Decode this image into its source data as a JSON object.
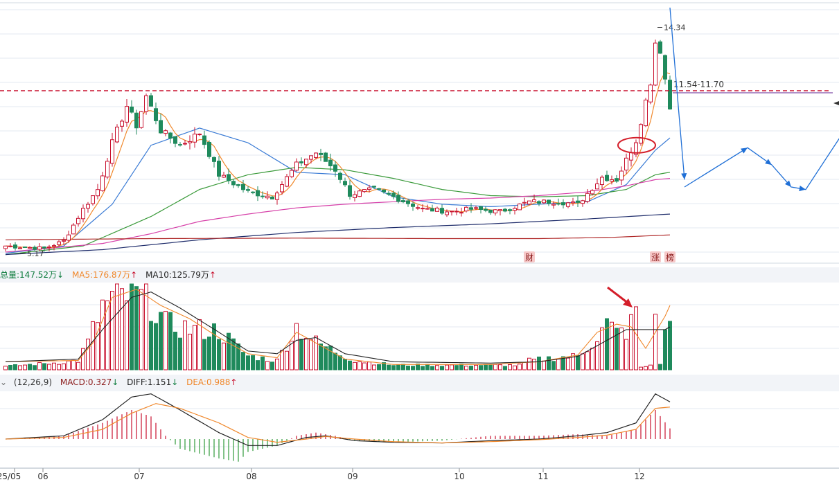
{
  "price_panel": {
    "high_label": "14.34",
    "low_label": "5.17",
    "resistance_label": "11.54-11.70",
    "markers": [
      "财",
      "涨",
      "榜"
    ]
  },
  "volume_panel": {
    "total_label": "总量:147.52万",
    "ma5_label": "MA5:176.87万",
    "ma10_label": "MA10:125.79万"
  },
  "macd_panel": {
    "params_label": "(12,26,9)",
    "macd_label": "MACD:0.327",
    "diff_label": "DIFF:1.151",
    "dea_label": "DEA:0.988"
  },
  "x_axis": {
    "labels": [
      "25/05",
      "06",
      "07",
      "08",
      "09",
      "10",
      "11",
      "12"
    ]
  },
  "colors": {
    "up": "#c8102e",
    "down": "#1f8a5c",
    "ma5": "#f0882c",
    "ma10": "#3a7bd5",
    "ma20": "#3a9a3a",
    "ma60": "#d63fa8",
    "ma120": "#1f2d6b",
    "ma250": "#b02a2a",
    "projection": "#1f6fd6"
  },
  "chart_data": {
    "type": "candlestick",
    "price_ylim": [
      4.6,
      15.2
    ],
    "resistance_value": 11.62,
    "close_path": [
      [
        0,
        5.3
      ],
      [
        8,
        5.2
      ],
      [
        12,
        5.5
      ],
      [
        16,
        6.8
      ],
      [
        19,
        7.6
      ],
      [
        22,
        9.5
      ],
      [
        25,
        11.0
      ],
      [
        27,
        10.2
      ],
      [
        29,
        11.4
      ],
      [
        32,
        10.0
      ],
      [
        36,
        9.4
      ],
      [
        40,
        9.9
      ],
      [
        44,
        8.2
      ],
      [
        50,
        7.5
      ],
      [
        55,
        7.3
      ],
      [
        60,
        8.6
      ],
      [
        64,
        9.1
      ],
      [
        68,
        8.4
      ],
      [
        71,
        7.4
      ],
      [
        76,
        7.6
      ],
      [
        80,
        7.3
      ],
      [
        86,
        6.8
      ],
      [
        92,
        6.7
      ],
      [
        96,
        6.8
      ],
      [
        102,
        6.7
      ],
      [
        108,
        7.1
      ],
      [
        114,
        7.1
      ],
      [
        118,
        7.0
      ],
      [
        123,
        8.1
      ],
      [
        126,
        8.0
      ],
      [
        128,
        8.8
      ],
      [
        130,
        9.6
      ],
      [
        133,
        12.0
      ],
      [
        134,
        13.6
      ],
      [
        135,
        13.3
      ],
      [
        136,
        12.1
      ],
      [
        137,
        10.9
      ]
    ],
    "events": [
      {
        "index": 108,
        "label": "财"
      },
      {
        "index": 134,
        "label": "涨"
      },
      {
        "index": 137,
        "label": "榜"
      }
    ],
    "ma_lines": [
      {
        "key": "ma10",
        "points": [
          [
            0,
            5.0
          ],
          [
            12,
            5.3
          ],
          [
            22,
            7.0
          ],
          [
            30,
            9.4
          ],
          [
            40,
            10.1
          ],
          [
            50,
            9.5
          ],
          [
            60,
            8.3
          ],
          [
            70,
            8.2
          ],
          [
            80,
            7.3
          ],
          [
            90,
            7.0
          ],
          [
            100,
            6.9
          ],
          [
            110,
            7.0
          ],
          [
            120,
            7.1
          ],
          [
            128,
            7.8
          ],
          [
            134,
            9.2
          ],
          [
            137,
            9.7
          ]
        ]
      },
      {
        "key": "ma20",
        "points": [
          [
            0,
            4.95
          ],
          [
            16,
            5.3
          ],
          [
            30,
            6.5
          ],
          [
            40,
            7.6
          ],
          [
            50,
            8.2
          ],
          [
            60,
            8.5
          ],
          [
            70,
            8.4
          ],
          [
            80,
            8.05
          ],
          [
            90,
            7.6
          ],
          [
            100,
            7.35
          ],
          [
            110,
            7.3
          ],
          [
            120,
            7.35
          ],
          [
            128,
            7.6
          ],
          [
            134,
            8.2
          ],
          [
            137,
            8.3
          ]
        ]
      },
      {
        "key": "ma60",
        "points": [
          [
            0,
            5.05
          ],
          [
            20,
            5.4
          ],
          [
            30,
            5.8
          ],
          [
            40,
            6.3
          ],
          [
            50,
            6.6
          ],
          [
            60,
            6.85
          ],
          [
            70,
            7.0
          ],
          [
            80,
            7.1
          ],
          [
            90,
            7.2
          ],
          [
            100,
            7.25
          ],
          [
            110,
            7.35
          ],
          [
            120,
            7.5
          ],
          [
            128,
            7.75
          ],
          [
            134,
            8.0
          ],
          [
            137,
            8.05
          ]
        ]
      },
      {
        "key": "ma120",
        "points": [
          [
            0,
            4.95
          ],
          [
            20,
            5.15
          ],
          [
            40,
            5.55
          ],
          [
            60,
            5.85
          ],
          [
            80,
            6.05
          ],
          [
            100,
            6.2
          ],
          [
            120,
            6.4
          ],
          [
            137,
            6.6
          ]
        ]
      },
      {
        "key": "ma250",
        "points": [
          [
            0,
            5.55
          ],
          [
            30,
            5.6
          ],
          [
            60,
            5.62
          ],
          [
            90,
            5.6
          ],
          [
            110,
            5.6
          ],
          [
            125,
            5.65
          ],
          [
            137,
            5.75
          ]
        ]
      }
    ],
    "projection": [
      [
        140,
        7.7
      ],
      [
        153,
        9.3
      ],
      [
        158,
        8.6
      ],
      [
        162,
        7.7
      ],
      [
        165,
        7.6
      ],
      [
        174,
        10.3
      ]
    ],
    "projection_aux": [
      [
        137,
        15.0
      ],
      [
        140,
        8.0
      ]
    ],
    "volume": {
      "ylim": [
        0,
        320
      ],
      "signal_volume_index": 130,
      "envelope": [
        [
          0,
          15
        ],
        [
          10,
          30
        ],
        [
          15,
          40
        ],
        [
          17,
          120
        ],
        [
          20,
          280
        ],
        [
          22,
          300
        ],
        [
          26,
          330
        ],
        [
          30,
          300
        ],
        [
          33,
          200
        ],
        [
          38,
          180
        ],
        [
          44,
          170
        ],
        [
          50,
          60
        ],
        [
          56,
          40
        ],
        [
          60,
          190
        ],
        [
          64,
          120
        ],
        [
          68,
          80
        ],
        [
          72,
          40
        ],
        [
          80,
          20
        ],
        [
          100,
          20
        ],
        [
          106,
          20
        ],
        [
          108,
          40
        ],
        [
          112,
          50
        ],
        [
          118,
          60
        ],
        [
          122,
          140
        ],
        [
          124,
          200
        ],
        [
          126,
          160
        ],
        [
          128,
          170
        ],
        [
          130,
          230
        ],
        [
          131,
          10
        ],
        [
          133,
          20
        ],
        [
          134,
          300
        ],
        [
          135,
          20
        ],
        [
          136,
          200
        ],
        [
          137,
          190
        ]
      ],
      "ma5": [
        [
          0,
          30
        ],
        [
          15,
          35
        ],
        [
          18,
          100
        ],
        [
          22,
          270
        ],
        [
          27,
          300
        ],
        [
          32,
          240
        ],
        [
          38,
          190
        ],
        [
          44,
          120
        ],
        [
          50,
          60
        ],
        [
          56,
          45
        ],
        [
          60,
          140
        ],
        [
          64,
          100
        ],
        [
          70,
          40
        ],
        [
          80,
          20
        ],
        [
          100,
          20
        ],
        [
          110,
          30
        ],
        [
          118,
          55
        ],
        [
          122,
          140
        ],
        [
          126,
          170
        ],
        [
          129,
          160
        ],
        [
          132,
          80
        ],
        [
          134,
          140
        ],
        [
          136,
          200
        ],
        [
          137,
          240
        ]
      ],
      "ma10": [
        [
          0,
          30
        ],
        [
          15,
          40
        ],
        [
          20,
          150
        ],
        [
          26,
          270
        ],
        [
          30,
          290
        ],
        [
          36,
          230
        ],
        [
          44,
          140
        ],
        [
          50,
          70
        ],
        [
          56,
          60
        ],
        [
          60,
          110
        ],
        [
          64,
          120
        ],
        [
          70,
          60
        ],
        [
          80,
          30
        ],
        [
          100,
          25
        ],
        [
          110,
          30
        ],
        [
          118,
          50
        ],
        [
          124,
          110
        ],
        [
          128,
          150
        ],
        [
          132,
          150
        ],
        [
          136,
          150
        ],
        [
          137,
          160
        ]
      ]
    },
    "macd": {
      "ylim": [
        -0.9,
        1.5
      ],
      "diff": [
        [
          0,
          0.0
        ],
        [
          12,
          0.1
        ],
        [
          20,
          0.6
        ],
        [
          26,
          1.3
        ],
        [
          30,
          1.4
        ],
        [
          36,
          0.9
        ],
        [
          44,
          0.2
        ],
        [
          50,
          -0.2
        ],
        [
          56,
          -0.2
        ],
        [
          62,
          0.05
        ],
        [
          66,
          0.1
        ],
        [
          72,
          -0.05
        ],
        [
          80,
          -0.1
        ],
        [
          90,
          -0.12
        ],
        [
          100,
          -0.05
        ],
        [
          110,
          0.0
        ],
        [
          118,
          0.1
        ],
        [
          124,
          0.2
        ],
        [
          130,
          0.5
        ],
        [
          134,
          1.4
        ],
        [
          137,
          1.15
        ]
      ],
      "dea": [
        [
          0,
          0.0
        ],
        [
          12,
          0.05
        ],
        [
          20,
          0.3
        ],
        [
          26,
          0.8
        ],
        [
          31,
          1.1
        ],
        [
          36,
          0.95
        ],
        [
          44,
          0.5
        ],
        [
          50,
          0.05
        ],
        [
          56,
          -0.1
        ],
        [
          62,
          0.0
        ],
        [
          66,
          0.08
        ],
        [
          72,
          0.0
        ],
        [
          80,
          -0.08
        ],
        [
          90,
          -0.12
        ],
        [
          100,
          -0.08
        ],
        [
          110,
          -0.02
        ],
        [
          118,
          0.05
        ],
        [
          124,
          0.12
        ],
        [
          130,
          0.3
        ],
        [
          134,
          0.95
        ],
        [
          137,
          0.99
        ]
      ],
      "hist": [
        [
          0,
          0.0
        ],
        [
          12,
          0.1
        ],
        [
          20,
          0.5
        ],
        [
          26,
          0.9
        ],
        [
          30,
          0.7
        ],
        [
          33,
          0.1
        ],
        [
          36,
          -0.3
        ],
        [
          44,
          -0.6
        ],
        [
          48,
          -0.7
        ],
        [
          50,
          -0.4
        ],
        [
          56,
          -0.2
        ],
        [
          60,
          0.1
        ],
        [
          64,
          0.2
        ],
        [
          68,
          0.1
        ],
        [
          72,
          -0.05
        ],
        [
          80,
          -0.1
        ],
        [
          90,
          -0.05
        ],
        [
          100,
          0.1
        ],
        [
          110,
          0.1
        ],
        [
          118,
          0.15
        ],
        [
          124,
          0.1
        ],
        [
          130,
          0.3
        ],
        [
          134,
          0.9
        ],
        [
          137,
          0.33
        ]
      ]
    }
  }
}
